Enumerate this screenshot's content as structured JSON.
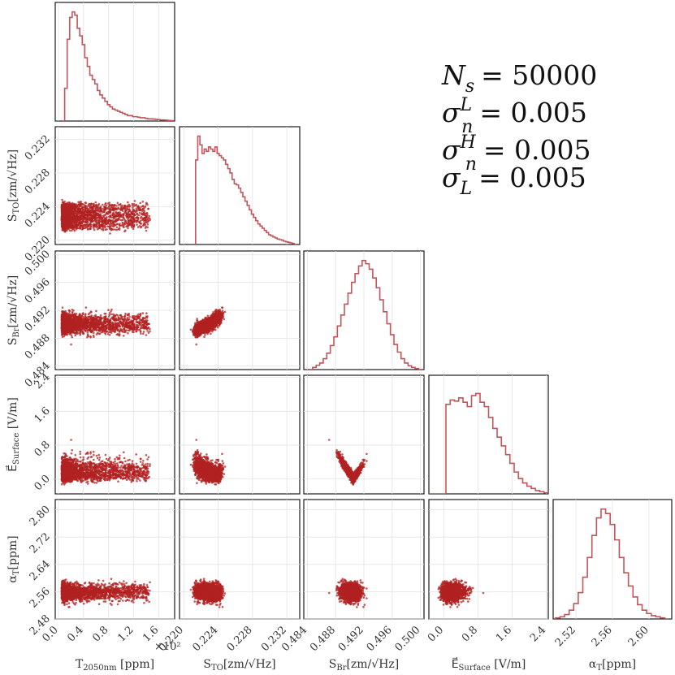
{
  "chart_data": {
    "type": "corner",
    "color": "#b22222",
    "hist_color": "#c0565c",
    "parameters": [
      {
        "key": "T",
        "label": "T2050nm [ppm]",
        "label_parts": [
          "T",
          "2050nm",
          " [ppm]"
        ],
        "range": [
          -0.05,
          1.85
        ],
        "ticks": [
          0.0,
          0.4,
          0.8,
          1.2,
          1.6
        ],
        "tick_labels": [
          "0.0",
          "0.4",
          "0.8",
          "1.2",
          "1.6"
        ],
        "offset_text": "×10²"
      },
      {
        "key": "STO",
        "label": "STO[zm/√Hz]",
        "label_parts": [
          "S",
          "TO",
          "[zm/√Hz]"
        ],
        "range": [
          0.2195,
          0.2335
        ],
        "ticks": [
          0.22,
          0.224,
          0.228,
          0.232
        ],
        "tick_labels": [
          "0.220",
          "0.224",
          "0.228",
          "0.232"
        ]
      },
      {
        "key": "SBr",
        "label": "SBr[zm/√Hz]",
        "label_parts": [
          "S",
          "Br",
          "[zm/√Hz]"
        ],
        "range": [
          0.4835,
          0.5005
        ],
        "ticks": [
          0.484,
          0.488,
          0.492,
          0.496,
          0.5
        ],
        "tick_labels": [
          "0.484",
          "0.488",
          "0.492",
          "0.496",
          "0.500"
        ]
      },
      {
        "key": "E",
        "label": "ESurface [V/m]",
        "label_parts": [
          "E⃗",
          "Surface",
          " [V/m]"
        ],
        "range": [
          -0.35,
          2.45
        ],
        "ticks": [
          0.0,
          0.8,
          1.6,
          2.4
        ],
        "tick_labels": [
          "0.0",
          "0.8",
          "1.6",
          "2.4"
        ],
        "ticks_y": [
          0.0,
          0.8,
          1.6,
          2.4
        ],
        "tick_labels_y": [
          "0.0",
          "0.8",
          "1.6",
          "2.4"
        ]
      },
      {
        "key": "alpha",
        "label": "αT[ppm]",
        "label_parts": [
          "α",
          "T",
          "[ppm]"
        ],
        "range": [
          2.48,
          2.83
        ],
        "ticks": [
          2.48,
          2.56,
          2.64,
          2.72,
          2.8
        ],
        "tick_labels": [
          "2.48",
          "2.56",
          "2.64",
          "2.72",
          "2.80"
        ],
        "diag_range": [
          2.495,
          2.625
        ],
        "diag_ticks": [
          2.52,
          2.56,
          2.6
        ],
        "diag_tick_labels": [
          "2.52",
          "2.56",
          "2.60"
        ]
      }
    ],
    "marginals": [
      {
        "x": [
          0.08,
          0.12,
          0.16,
          0.2,
          0.24,
          0.28,
          0.32,
          0.36,
          0.4,
          0.44,
          0.48,
          0.52,
          0.56,
          0.6,
          0.64,
          0.68,
          0.72,
          0.76,
          0.8,
          0.84,
          0.88,
          0.92,
          0.96,
          1.0,
          1.04,
          1.08,
          1.12,
          1.16,
          1.2,
          1.24,
          1.28,
          1.32,
          1.36,
          1.4,
          1.44,
          1.48,
          1.52,
          1.56,
          1.6,
          1.64,
          1.68,
          1.72,
          1.76,
          1.8
        ],
        "density": [
          0.0,
          0.3,
          0.75,
          0.95,
          1.0,
          0.97,
          0.85,
          0.78,
          0.7,
          0.58,
          0.5,
          0.42,
          0.38,
          0.34,
          0.28,
          0.24,
          0.21,
          0.18,
          0.15,
          0.13,
          0.11,
          0.1,
          0.09,
          0.08,
          0.07,
          0.06,
          0.05,
          0.05,
          0.04,
          0.04,
          0.035,
          0.03,
          0.03,
          0.025,
          0.02,
          0.02,
          0.018,
          0.015,
          0.013,
          0.01,
          0.01,
          0.008,
          0.005,
          0.004
        ]
      },
      {
        "x": [
          0.2215,
          0.22175,
          0.222,
          0.22225,
          0.2225,
          0.22275,
          0.223,
          0.22325,
          0.2235,
          0.22375,
          0.224,
          0.22425,
          0.2245,
          0.22475,
          0.225,
          0.22525,
          0.2255,
          0.22575,
          0.226,
          0.22625,
          0.2265,
          0.22675,
          0.227,
          0.22725,
          0.2275,
          0.22775,
          0.228,
          0.22825,
          0.2285,
          0.22875,
          0.229,
          0.22925,
          0.2295,
          0.22975,
          0.23,
          0.23025,
          0.2305,
          0.23075,
          0.231,
          0.23125,
          0.2315,
          0.23175,
          0.232,
          0.23225,
          0.2325,
          0.23275,
          0.233
        ],
        "density": [
          0.78,
          1.0,
          0.92,
          0.84,
          0.88,
          0.86,
          0.9,
          0.88,
          0.86,
          0.9,
          0.84,
          0.82,
          0.8,
          0.78,
          0.74,
          0.7,
          0.66,
          0.6,
          0.56,
          0.55,
          0.52,
          0.48,
          0.44,
          0.4,
          0.36,
          0.32,
          0.28,
          0.25,
          0.22,
          0.19,
          0.17,
          0.15,
          0.13,
          0.11,
          0.09,
          0.08,
          0.07,
          0.06,
          0.05,
          0.045,
          0.04,
          0.03,
          0.025,
          0.02,
          0.015,
          0.01,
          0.0
        ]
      },
      {
        "x": [
          0.4845,
          0.485,
          0.4855,
          0.486,
          0.4865,
          0.487,
          0.4875,
          0.488,
          0.4885,
          0.489,
          0.4895,
          0.49,
          0.4905,
          0.491,
          0.4915,
          0.492,
          0.4925,
          0.493,
          0.4935,
          0.494,
          0.4945,
          0.495,
          0.4955,
          0.496,
          0.4965,
          0.497,
          0.4975,
          0.498,
          0.4985,
          0.499,
          0.4995,
          0.5
        ],
        "density": [
          0.0,
          0.02,
          0.04,
          0.06,
          0.1,
          0.15,
          0.22,
          0.3,
          0.4,
          0.5,
          0.6,
          0.7,
          0.8,
          0.88,
          0.95,
          1.0,
          0.97,
          0.92,
          0.84,
          0.75,
          0.64,
          0.53,
          0.42,
          0.32,
          0.23,
          0.16,
          0.1,
          0.06,
          0.035,
          0.02,
          0.01,
          0.0
        ]
      },
      {
        "x": [
          -0.3,
          -0.2,
          -0.1,
          0.0,
          0.1,
          0.2,
          0.3,
          0.4,
          0.5,
          0.6,
          0.7,
          0.8,
          0.9,
          1.0,
          1.1,
          1.2,
          1.3,
          1.4,
          1.5,
          1.6,
          1.7,
          1.8,
          1.9,
          2.0,
          2.1,
          2.2,
          2.3,
          2.4
        ],
        "density": [
          0.0,
          0.0,
          0.0,
          0.0,
          0.82,
          0.86,
          0.85,
          0.88,
          0.84,
          0.8,
          0.9,
          0.92,
          0.84,
          0.8,
          0.7,
          0.6,
          0.52,
          0.44,
          0.36,
          0.28,
          0.2,
          0.14,
          0.1,
          0.07,
          0.05,
          0.03,
          0.02,
          0.01
        ]
      },
      {
        "x": [
          2.5,
          2.505,
          2.51,
          2.515,
          2.52,
          2.525,
          2.53,
          2.535,
          2.54,
          2.545,
          2.55,
          2.555,
          2.56,
          2.565,
          2.57,
          2.575,
          2.58,
          2.585,
          2.59,
          2.595,
          2.6,
          2.605,
          2.61,
          2.615,
          2.62
        ],
        "density": [
          0.01,
          0.02,
          0.04,
          0.08,
          0.14,
          0.24,
          0.38,
          0.56,
          0.76,
          0.92,
          1.0,
          0.96,
          0.86,
          0.72,
          0.56,
          0.42,
          0.3,
          0.2,
          0.13,
          0.08,
          0.05,
          0.03,
          0.02,
          0.01,
          0.0
        ]
      }
    ],
    "annotations": [
      {
        "base": "N",
        "sub": "s",
        "sup": "",
        "value": "= 50000"
      },
      {
        "base": "σ",
        "sub": "n",
        "sup": "L",
        "value": "= 0.005"
      },
      {
        "base": "σ",
        "sub": "n",
        "sup": "H",
        "value": "= 0.005"
      },
      {
        "base": "σ",
        "sub": "L",
        "sup": "",
        "value": "= 0.005"
      }
    ]
  }
}
